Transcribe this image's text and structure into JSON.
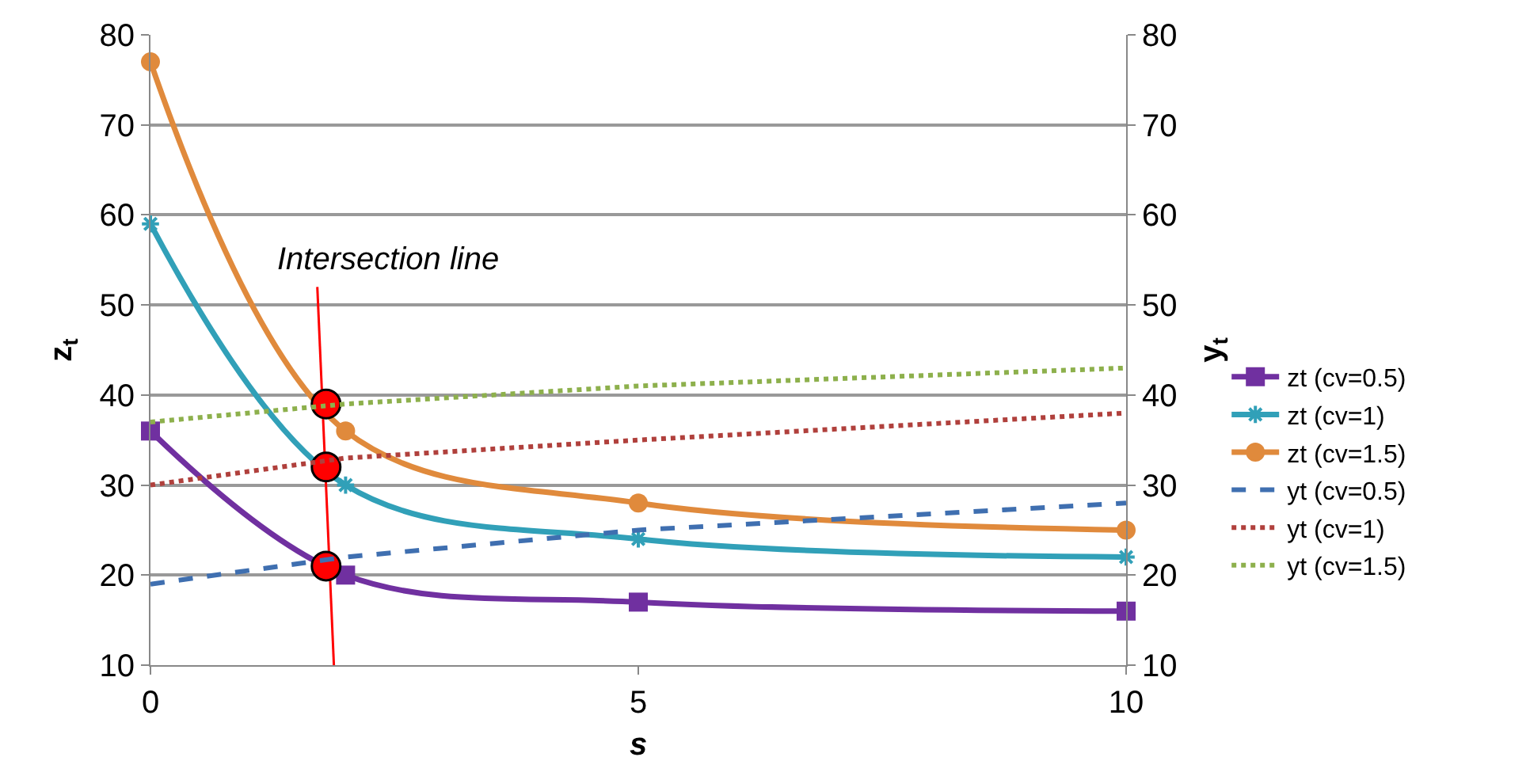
{
  "chart_data": {
    "type": "line",
    "xlabel": "s",
    "ylabel": "z$_{t}$",
    "y2label": "y$_{t}$",
    "xlim": [
      0,
      10
    ],
    "xticks": [
      0,
      5,
      10
    ],
    "ylim": [
      10,
      80
    ],
    "yticks": [
      10,
      20,
      30,
      40,
      50,
      60,
      70,
      80
    ],
    "y2lim": [
      10,
      80
    ],
    "y2ticks": [
      10,
      20,
      30,
      40,
      50,
      60,
      70,
      80
    ],
    "grid": "y",
    "legend": "right",
    "x": [
      0,
      2,
      5,
      10
    ],
    "series": [
      {
        "name": "zt (cv=0.5)",
        "color": "#7030a0",
        "values": [
          36,
          20,
          17,
          16
        ],
        "marker": "square",
        "line_style": "solid"
      },
      {
        "name": "zt (cv=1)",
        "color": "#31a0b8",
        "values": [
          59,
          30,
          24,
          22
        ],
        "marker": "cross",
        "line_style": "solid"
      },
      {
        "name": "zt (cv=1.5)",
        "color": "#e08a3c",
        "values": [
          77,
          36,
          28,
          25
        ],
        "marker": "circle",
        "line_style": "solid"
      },
      {
        "name": "yt (cv=0.5)",
        "color": "#3f6fb0",
        "values": [
          19,
          22,
          25,
          28
        ],
        "marker": "none",
        "line_style": "dashed",
        "axis": "y2"
      },
      {
        "name": "yt (cv=1)",
        "color": "#b0403c",
        "values": [
          30,
          33,
          35,
          38
        ],
        "marker": "none",
        "line_style": "dotted",
        "axis": "y2"
      },
      {
        "name": "yt (cv=1.5)",
        "color": "#8db04c",
        "values": [
          37,
          39,
          41,
          43
        ],
        "marker": "none",
        "line_style": "dotted",
        "axis": "y2"
      },
      {
        "type": "line",
        "color": "#ff0000",
        "x": [
          1.71,
          1.88
        ],
        "values": [
          52,
          10
        ],
        "marker": "none",
        "line_style": "solid"
      },
      {
        "type": "scatter",
        "color": "#ff0000",
        "x": [
          1.8,
          1.8,
          1.8
        ],
        "values": [
          39,
          32,
          21
        ],
        "marker": "circle"
      }
    ],
    "annotations": [
      {
        "text": "Intersection line",
        "x": 1.71,
        "y": 52
      }
    ]
  }
}
